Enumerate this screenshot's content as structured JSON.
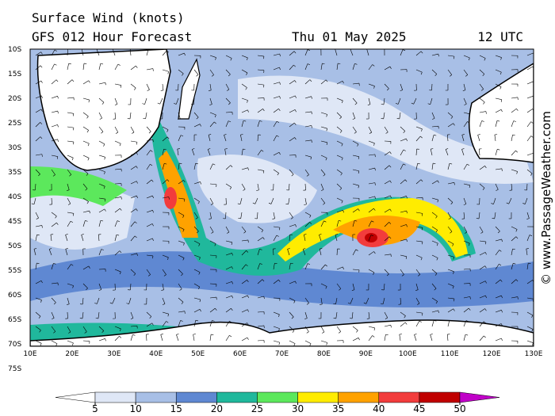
{
  "header": {
    "title": "Surface Wind (knots)",
    "model": "GFS 012 Hour Forecast",
    "date": "Thu 01 May 2025",
    "time": "12 UTC"
  },
  "map": {
    "lat_labels": [
      "10S",
      "15S",
      "20S",
      "25S",
      "30S",
      "35S",
      "40S",
      "45S",
      "50S",
      "55S",
      "60S",
      "65S",
      "70S",
      "75S"
    ],
    "lon_labels": [
      "10E",
      "20E",
      "30E",
      "40E",
      "50E",
      "60E",
      "70E",
      "80E",
      "90E",
      "100E",
      "110E",
      "120E",
      "130E"
    ]
  },
  "colorbar": {
    "ticks": [
      5,
      10,
      15,
      20,
      25,
      30,
      35,
      40,
      45,
      50
    ],
    "colors": [
      "#ffffff",
      "#dfe7f6",
      "#a8bfe6",
      "#5f88d2",
      "#20b89c",
      "#5ce85c",
      "#ffec00",
      "#ffa200",
      "#f23c3c",
      "#c00000",
      "#c000c8"
    ]
  },
  "credit": "© www.PassageWeather.com"
}
